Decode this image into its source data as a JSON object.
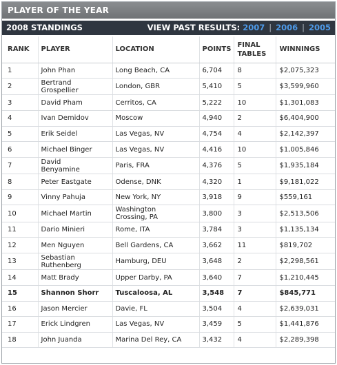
{
  "header": {
    "title": "PLAYER OF THE YEAR",
    "standings": "2008 STANDINGS",
    "past_label": "VIEW PAST RESULTS:",
    "years": [
      "2007",
      "2006",
      "2005"
    ]
  },
  "table": {
    "columns": {
      "rank": "RANK",
      "player": "PLAYER",
      "location": "LOCATION",
      "points": "POINTS",
      "final_tables_1": "FINAL",
      "final_tables_2": "TABLES",
      "winnings": "WINNINGS"
    },
    "rows": [
      {
        "rank": "1",
        "player": [
          "John Phan"
        ],
        "location": [
          "Long Beach, CA"
        ],
        "points": "6,704",
        "final_tables": "8",
        "winnings": "$2,075,323"
      },
      {
        "rank": "2",
        "player": [
          "Bertrand",
          "Grospellier"
        ],
        "location": [
          "London, GBR"
        ],
        "points": "5,410",
        "final_tables": "5",
        "winnings": "$3,599,960"
      },
      {
        "rank": "3",
        "player": [
          "David Pham"
        ],
        "location": [
          "Cerritos, CA"
        ],
        "points": "5,222",
        "final_tables": "10",
        "winnings": "$1,301,083"
      },
      {
        "rank": "4",
        "player": [
          "Ivan Demidov"
        ],
        "location": [
          "Moscow"
        ],
        "points": "4,940",
        "final_tables": "2",
        "winnings": "$6,404,900"
      },
      {
        "rank": "5",
        "player": [
          "Erik Seidel"
        ],
        "location": [
          "Las Vegas, NV"
        ],
        "points": "4,754",
        "final_tables": "4",
        "winnings": "$2,142,397"
      },
      {
        "rank": "6",
        "player": [
          "Michael Binger"
        ],
        "location": [
          "Las Vegas, NV"
        ],
        "points": "4,416",
        "final_tables": "10",
        "winnings": "$1,005,846"
      },
      {
        "rank": "7",
        "player": [
          "David",
          "Benyamine"
        ],
        "location": [
          "Paris, FRA"
        ],
        "points": "4,376",
        "final_tables": "5",
        "winnings": "$1,935,184"
      },
      {
        "rank": "8",
        "player": [
          "Peter Eastgate"
        ],
        "location": [
          "Odense, DNK"
        ],
        "points": "4,320",
        "final_tables": "1",
        "winnings": "$9,181,022"
      },
      {
        "rank": "9",
        "player": [
          "Vinny Pahuja"
        ],
        "location": [
          "New York, NY"
        ],
        "points": "3,918",
        "final_tables": "9",
        "winnings": "$559,161"
      },
      {
        "rank": "10",
        "player": [
          "Michael Martin"
        ],
        "location": [
          "Washington",
          "Crossing, PA"
        ],
        "points": "3,800",
        "final_tables": "3",
        "winnings": "$2,513,506"
      },
      {
        "rank": "11",
        "player": [
          "Dario Minieri"
        ],
        "location": [
          "Rome, ITA"
        ],
        "points": "3,784",
        "final_tables": "3",
        "winnings": "$1,135,134"
      },
      {
        "rank": "12",
        "player": [
          "Men Nguyen"
        ],
        "location": [
          "Bell Gardens, CA"
        ],
        "points": "3,662",
        "final_tables": "11",
        "winnings": "$819,702"
      },
      {
        "rank": "13",
        "player": [
          "Sebastian",
          "Ruthenberg"
        ],
        "location": [
          "Hamburg, DEU"
        ],
        "points": "3,648",
        "final_tables": "2",
        "winnings": "$2,298,561"
      },
      {
        "rank": "14",
        "player": [
          "Matt Brady"
        ],
        "location": [
          "Upper Darby, PA"
        ],
        "points": "3,640",
        "final_tables": "7",
        "winnings": "$1,210,445"
      },
      {
        "rank": "15",
        "player": [
          "Shannon Shorr"
        ],
        "location": [
          "Tuscaloosa, AL"
        ],
        "points": "3,548",
        "final_tables": "7",
        "winnings": "$845,771",
        "highlight": true
      },
      {
        "rank": "16",
        "player": [
          "Jason Mercier"
        ],
        "location": [
          "Davie, FL"
        ],
        "points": "3,504",
        "final_tables": "4",
        "winnings": "$2,639,031"
      },
      {
        "rank": "17",
        "player": [
          "Erick Lindgren"
        ],
        "location": [
          "Las Vegas, NV"
        ],
        "points": "3,459",
        "final_tables": "5",
        "winnings": "$1,441,876"
      },
      {
        "rank": "18",
        "player": [
          "John Juanda"
        ],
        "location": [
          "Marina Del Rey, CA"
        ],
        "points": "3,432",
        "final_tables": "4",
        "winnings": "$2,289,398"
      }
    ]
  }
}
